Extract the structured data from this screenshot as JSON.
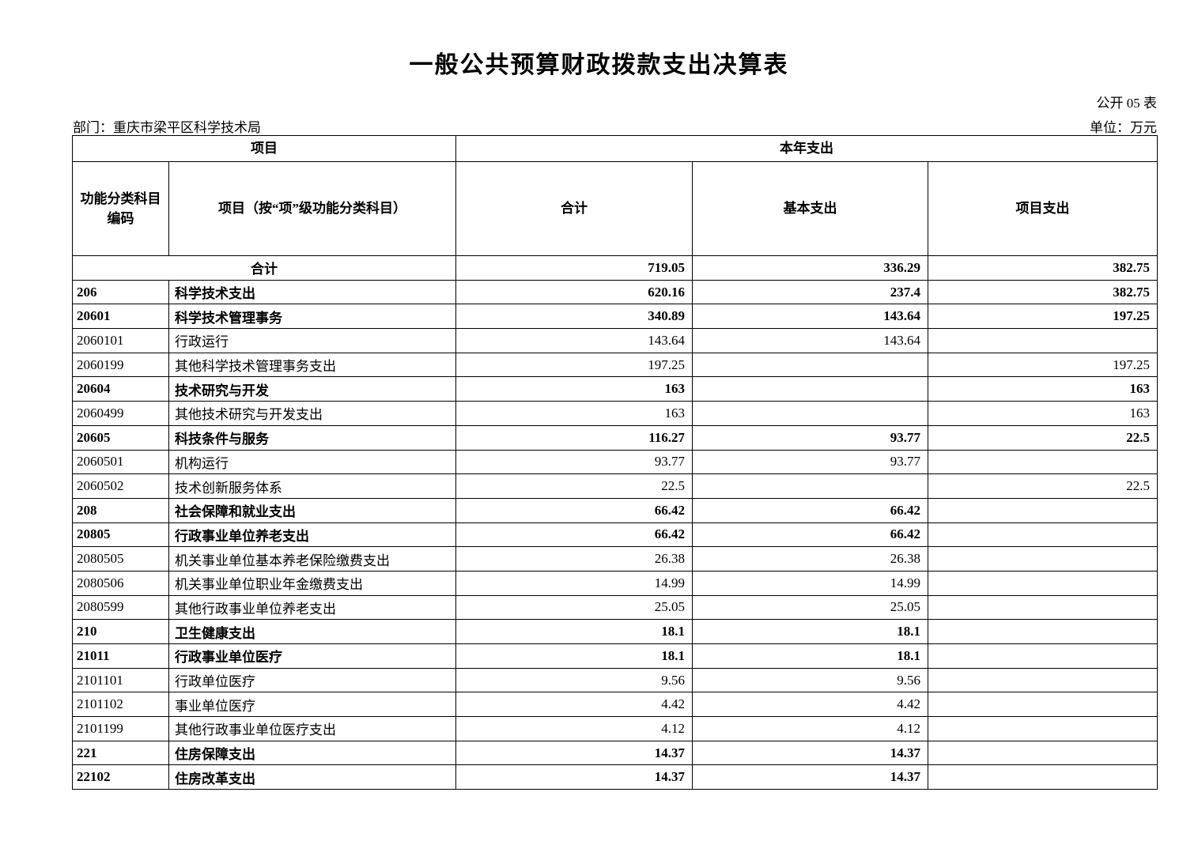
{
  "page": {
    "title": "一般公共预算财政拨款支出决算表",
    "table_number": "公开 05 表",
    "department": "部门：重庆市梁平区科学技术局",
    "unit": "单位：万元"
  },
  "table": {
    "header": {
      "group_item": "项目",
      "group_current_year": "本年支出",
      "col_code": "功能分类科目编码",
      "col_item": "项目（按“项”级功能分类科目）",
      "col_total": "合计",
      "col_basic": "基本支出",
      "col_project": "项目支出"
    },
    "rows": [
      {
        "summary": true,
        "bold": true,
        "code": "",
        "name": "合计",
        "total": "719.05",
        "basic": "336.29",
        "project": "382.75"
      },
      {
        "summary": false,
        "bold": true,
        "code": "206",
        "name": "科学技术支出",
        "total": "620.16",
        "basic": "237.4",
        "project": "382.75"
      },
      {
        "summary": false,
        "bold": true,
        "code": "20601",
        "name": "科学技术管理事务",
        "total": "340.89",
        "basic": "143.64",
        "project": "197.25"
      },
      {
        "summary": false,
        "bold": false,
        "code": "2060101",
        "name": "行政运行",
        "total": "143.64",
        "basic": "143.64",
        "project": ""
      },
      {
        "summary": false,
        "bold": false,
        "code": "2060199",
        "name": "其他科学技术管理事务支出",
        "total": "197.25",
        "basic": "",
        "project": "197.25"
      },
      {
        "summary": false,
        "bold": true,
        "code": "20604",
        "name": "技术研究与开发",
        "total": "163",
        "basic": "",
        "project": "163"
      },
      {
        "summary": false,
        "bold": false,
        "code": "2060499",
        "name": "其他技术研究与开发支出",
        "total": "163",
        "basic": "",
        "project": "163"
      },
      {
        "summary": false,
        "bold": true,
        "code": "20605",
        "name": "科技条件与服务",
        "total": "116.27",
        "basic": "93.77",
        "project": "22.5"
      },
      {
        "summary": false,
        "bold": false,
        "code": "2060501",
        "name": "机构运行",
        "total": "93.77",
        "basic": "93.77",
        "project": ""
      },
      {
        "summary": false,
        "bold": false,
        "code": "2060502",
        "name": "技术创新服务体系",
        "total": "22.5",
        "basic": "",
        "project": "22.5"
      },
      {
        "summary": false,
        "bold": true,
        "code": "208",
        "name": "社会保障和就业支出",
        "total": "66.42",
        "basic": "66.42",
        "project": ""
      },
      {
        "summary": false,
        "bold": true,
        "code": "20805",
        "name": "行政事业单位养老支出",
        "total": "66.42",
        "basic": "66.42",
        "project": ""
      },
      {
        "summary": false,
        "bold": false,
        "code": "2080505",
        "name": "机关事业单位基本养老保险缴费支出",
        "total": "26.38",
        "basic": "26.38",
        "project": ""
      },
      {
        "summary": false,
        "bold": false,
        "code": "2080506",
        "name": "机关事业单位职业年金缴费支出",
        "total": "14.99",
        "basic": "14.99",
        "project": ""
      },
      {
        "summary": false,
        "bold": false,
        "code": "2080599",
        "name": "其他行政事业单位养老支出",
        "total": "25.05",
        "basic": "25.05",
        "project": ""
      },
      {
        "summary": false,
        "bold": true,
        "code": "210",
        "name": "卫生健康支出",
        "total": "18.1",
        "basic": "18.1",
        "project": ""
      },
      {
        "summary": false,
        "bold": true,
        "code": "21011",
        "name": "行政事业单位医疗",
        "total": "18.1",
        "basic": "18.1",
        "project": ""
      },
      {
        "summary": false,
        "bold": false,
        "code": "2101101",
        "name": "行政单位医疗",
        "total": "9.56",
        "basic": "9.56",
        "project": ""
      },
      {
        "summary": false,
        "bold": false,
        "code": "2101102",
        "name": "事业单位医疗",
        "total": "4.42",
        "basic": "4.42",
        "project": ""
      },
      {
        "summary": false,
        "bold": false,
        "code": "2101199",
        "name": "其他行政事业单位医疗支出",
        "total": "4.12",
        "basic": "4.12",
        "project": ""
      },
      {
        "summary": false,
        "bold": true,
        "code": "221",
        "name": "住房保障支出",
        "total": "14.37",
        "basic": "14.37",
        "project": ""
      },
      {
        "summary": false,
        "bold": true,
        "code": "22102",
        "name": "住房改革支出",
        "total": "14.37",
        "basic": "14.37",
        "project": ""
      }
    ]
  }
}
